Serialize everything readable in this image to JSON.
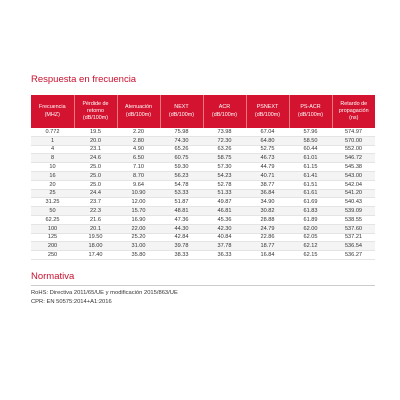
{
  "title": "Respuesta en frecuencia",
  "table": {
    "header": [
      "Frecuencia\n(MHZ)",
      "Pérdide de retorno\n(dB/100m)",
      "Atenuación\n(dB/100m)",
      "NEXT\n(dB/100m)",
      "ACR\n(dB/100m)",
      "PSNEXT\n(dB/100m)",
      "PS-ACR\n(dB/100m)",
      "Retardo de\npropagación\n(ns)"
    ],
    "rows": [
      [
        "0.772",
        "19.5",
        "2.20",
        "75.98",
        "73.98",
        "67.04",
        "57.96",
        "574.97"
      ],
      [
        "1",
        "20.0",
        "2.80",
        "74.30",
        "72.30",
        "64.80",
        "58.50",
        "570.00"
      ],
      [
        "4",
        "23.1",
        "4.90",
        "65.26",
        "63.26",
        "52.75",
        "60.44",
        "552.00"
      ],
      [
        "8",
        "24.6",
        "6.50",
        "60.75",
        "58.75",
        "46.73",
        "61.01",
        "546.72"
      ],
      [
        "10",
        "25.0",
        "7.10",
        "59.30",
        "57.30",
        "44.79",
        "61.15",
        "545.38"
      ],
      [
        "16",
        "25.0",
        "8.70",
        "56.23",
        "54.23",
        "40.71",
        "61.41",
        "543.00"
      ],
      [
        "20",
        "25.0",
        "9.64",
        "54.78",
        "52.78",
        "38.77",
        "61.51",
        "542.04"
      ],
      [
        "25",
        "24.4",
        "10.90",
        "53.33",
        "51.33",
        "36.84",
        "61.61",
        "541.20"
      ],
      [
        "31.25",
        "23.7",
        "12.00",
        "51.87",
        "49.87",
        "34.90",
        "61.69",
        "540.43"
      ],
      [
        "50",
        "22.3",
        "15.70",
        "48.81",
        "46.81",
        "30.82",
        "61.83",
        "539.09"
      ],
      [
        "62.25",
        "21.6",
        "16.90",
        "47.36",
        "45.36",
        "28.88",
        "61.89",
        "538.55"
      ],
      [
        "100",
        "20.1",
        "22.00",
        "44.30",
        "42.30",
        "24.79",
        "62.00",
        "537.60"
      ],
      [
        "125",
        "19.50",
        "25.20",
        "42.84",
        "40.84",
        "22.86",
        "62.05",
        "537.21"
      ],
      [
        "200",
        "18.00",
        "31.00",
        "39.78",
        "37.78",
        "18.77",
        "62.12",
        "536.54"
      ],
      [
        "250",
        "17.40",
        "35.80",
        "38.33",
        "36.33",
        "16.84",
        "62.15",
        "536.27"
      ]
    ]
  },
  "normativa": {
    "heading": "Normativa",
    "lines": [
      "RoHS: Directiva 2011/65/UE y modificación 2015/863/UE",
      "CPR: EN 50575:2014+A1:2016"
    ]
  }
}
